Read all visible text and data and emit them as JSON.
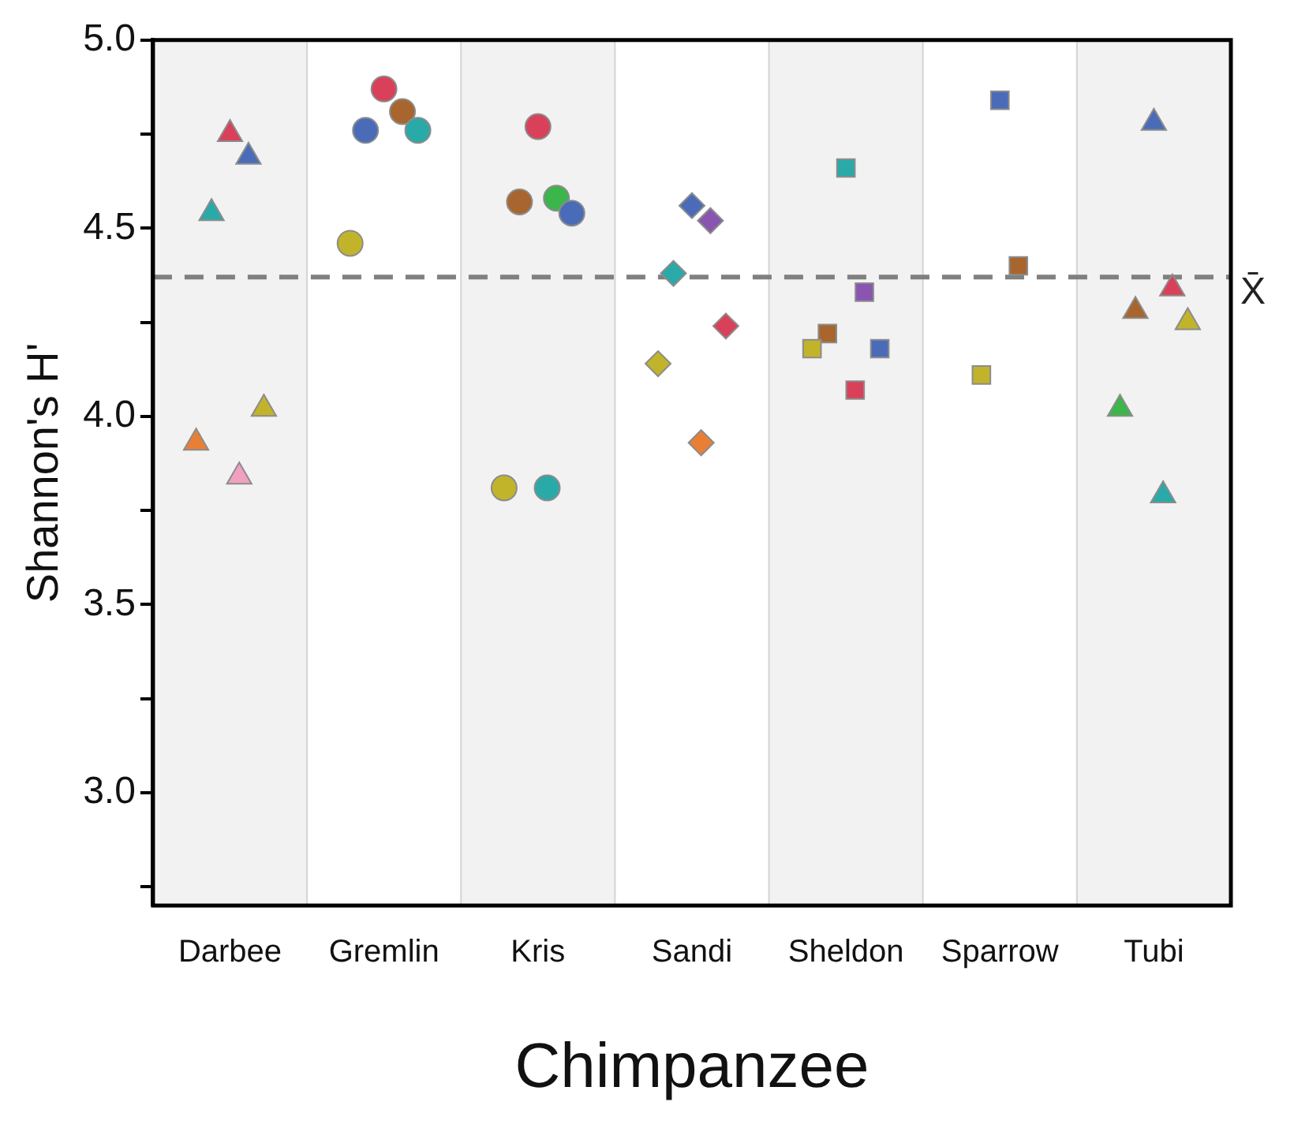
{
  "chart_data": {
    "type": "scatter",
    "xlabel": "Chimpanzee",
    "ylabel": "Shannon's H'",
    "categories": [
      "Darbee",
      "Gremlin",
      "Kris",
      "Sandi",
      "Sheldon",
      "Sparrow",
      "Tubi"
    ],
    "series": [
      {
        "marker": "triangle",
        "x": [
          "Darbee",
          "Darbee",
          "Darbee",
          "Darbee",
          "Darbee",
          "Darbee"
        ],
        "values": [
          4.75,
          4.69,
          4.54,
          4.02,
          3.93,
          3.84
        ],
        "colors": [
          "#d9415a",
          "#4a6cb8",
          "#2aa9a9",
          "#c2b42a",
          "#e97f35",
          "#f2a0c0"
        ]
      },
      {
        "marker": "circle",
        "x": [
          "Gremlin",
          "Gremlin",
          "Gremlin",
          "Gremlin",
          "Gremlin"
        ],
        "values": [
          4.87,
          4.81,
          4.76,
          4.76,
          4.46
        ],
        "colors": [
          "#d9415a",
          "#a8662e",
          "#4a6cb8",
          "#2aa9a9",
          "#c2b42a"
        ]
      },
      {
        "marker": "circle",
        "x": [
          "Kris",
          "Kris",
          "Kris",
          "Kris",
          "Kris",
          "Kris"
        ],
        "values": [
          4.77,
          4.58,
          4.57,
          4.54,
          3.81,
          3.81
        ],
        "colors": [
          "#d9415a",
          "#3cb54a",
          "#a8662e",
          "#4a6cb8",
          "#c2b42a",
          "#2aa9a9"
        ]
      },
      {
        "marker": "diamond",
        "x": [
          "Sandi",
          "Sandi",
          "Sandi",
          "Sandi",
          "Sandi",
          "Sandi"
        ],
        "values": [
          4.56,
          4.52,
          4.38,
          4.24,
          4.14,
          3.93
        ],
        "colors": [
          "#4a6cb8",
          "#8a55b0",
          "#2aa9a9",
          "#d9415a",
          "#c2b42a",
          "#e97f35"
        ]
      },
      {
        "marker": "square",
        "x": [
          "Sheldon",
          "Sheldon",
          "Sheldon",
          "Sheldon",
          "Sheldon",
          "Sheldon"
        ],
        "values": [
          4.66,
          4.33,
          4.22,
          4.18,
          4.18,
          4.07
        ],
        "colors": [
          "#2aa9a9",
          "#8a55b0",
          "#a8662e",
          "#4a6cb8",
          "#c2b42a",
          "#d9415a"
        ]
      },
      {
        "marker": "square",
        "x": [
          "Sparrow",
          "Sparrow",
          "Sparrow"
        ],
        "values": [
          4.84,
          4.4,
          4.11
        ],
        "colors": [
          "#4a6cb8",
          "#a8662e",
          "#c2b42a"
        ]
      },
      {
        "marker": "triangle",
        "x": [
          "Tubi",
          "Tubi",
          "Tubi",
          "Tubi",
          "Tubi",
          "Tubi"
        ],
        "values": [
          4.78,
          4.34,
          4.28,
          4.25,
          4.02,
          3.79
        ],
        "colors": [
          "#4a6cb8",
          "#d9415a",
          "#a8662e",
          "#c2b42a",
          "#3cb54a",
          "#2aa9a9"
        ]
      }
    ],
    "ylim": [
      2.7,
      5.0
    ],
    "yticks": [
      {
        "value": 2.75,
        "label": null
      },
      {
        "value": 3,
        "label": "3.0"
      },
      {
        "value": 3.25,
        "label": null
      },
      {
        "value": 3.5,
        "label": "3.5"
      },
      {
        "value": 3.75,
        "label": null
      },
      {
        "value": 4,
        "label": "4.0"
      },
      {
        "value": 4.25,
        "label": null
      },
      {
        "value": 4.5,
        "label": "4.5"
      },
      {
        "value": 4.75,
        "label": null
      },
      {
        "value": 5,
        "label": "5.0"
      }
    ],
    "ref_lines": [
      {
        "axis": "y",
        "value": 4.37,
        "label": "X̄",
        "color": "#808080",
        "line_style": "dashed"
      }
    ],
    "grid": "x",
    "legend": false
  }
}
